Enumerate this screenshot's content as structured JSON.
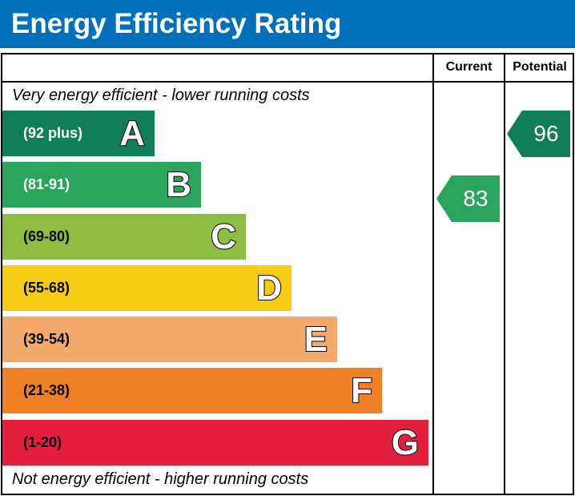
{
  "title": "Energy Efficiency Rating",
  "columns": {
    "current": "Current",
    "potential": "Potential"
  },
  "top_note": "Very energy efficient - lower running costs",
  "bottom_note": "Not energy efficient - higher running costs",
  "chart_data": {
    "type": "bar",
    "title": "Energy Efficiency Rating",
    "bands": [
      {
        "letter": "A",
        "range": "(92 plus)",
        "color": "#127d59"
      },
      {
        "letter": "B",
        "range": "(81-91)",
        "color": "#2ba55d"
      },
      {
        "letter": "C",
        "range": "(69-80)",
        "color": "#8dbd42"
      },
      {
        "letter": "D",
        "range": "(55-68)",
        "color": "#f6cc15"
      },
      {
        "letter": "E",
        "range": "(39-54)",
        "color": "#f2ab6c"
      },
      {
        "letter": "F",
        "range": "(21-38)",
        "color": "#ee8126"
      },
      {
        "letter": "G",
        "range": "(1-20)",
        "color": "#e2203d"
      }
    ],
    "current": {
      "value": "83",
      "band": "B",
      "color": "#2ba55d"
    },
    "potential": {
      "value": "96",
      "band": "A",
      "color": "#127d59"
    }
  }
}
